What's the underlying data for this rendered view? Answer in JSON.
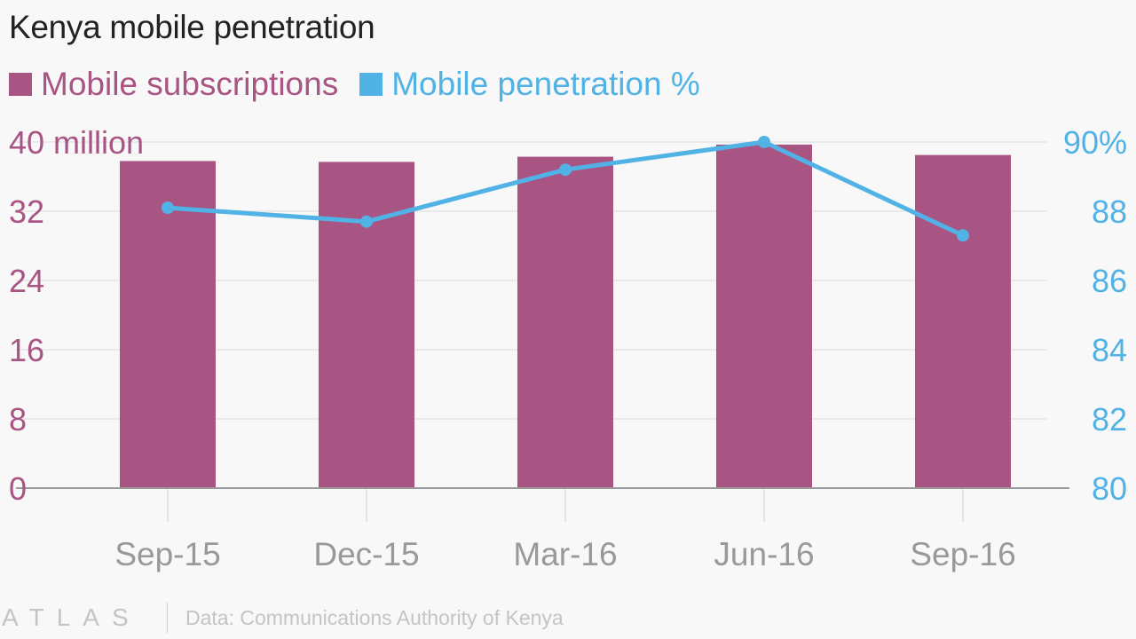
{
  "brand": {
    "logo": "ATLAS"
  },
  "source": "Data: Communications Authority of Kenya",
  "colors": {
    "bar": "#a85584",
    "line": "#51b2e5",
    "axis_text": "#999999",
    "grid": "#e6e6e6"
  },
  "chart_data": {
    "type": "bar+line",
    "title": "Kenya mobile penetration",
    "categories": [
      "Sep-15",
      "Dec-15",
      "Mar-16",
      "Jun-16",
      "Sep-16"
    ],
    "series": [
      {
        "name": "Mobile subscriptions",
        "type": "bar",
        "axis": "left",
        "unit": "million",
        "values": [
          37.8,
          37.7,
          38.3,
          39.7,
          38.5
        ]
      },
      {
        "name": "Mobile penetration %",
        "type": "line",
        "axis": "right",
        "unit": "%",
        "values": [
          88.1,
          87.7,
          89.2,
          90.0,
          87.3
        ]
      }
    ],
    "y_left": {
      "ylim": [
        0,
        40
      ],
      "ticks": [
        "0",
        "8",
        "16",
        "24",
        "32",
        "40 million"
      ],
      "tick_values": [
        0,
        8,
        16,
        24,
        32,
        40
      ]
    },
    "y_right": {
      "ylim": [
        80,
        90
      ],
      "ticks": [
        "80",
        "82",
        "84",
        "86",
        "88",
        "90%"
      ],
      "tick_values": [
        80,
        82,
        84,
        86,
        88,
        90
      ]
    },
    "grid": true,
    "legend": "top-left"
  }
}
